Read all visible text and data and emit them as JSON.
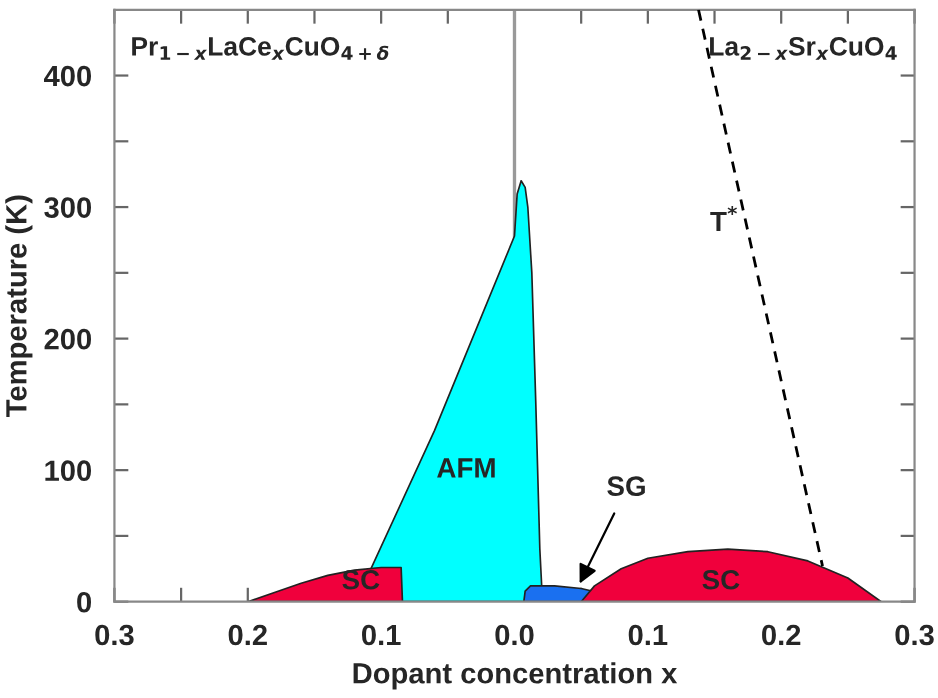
{
  "chart_data": {
    "type": "area",
    "xlabel": "Dopant concentration x",
    "ylabel": "Temperature (K)",
    "xlim": [
      -0.3,
      0.3
    ],
    "ylim": [
      0,
      450
    ],
    "xticks": [
      {
        "value": -0.3,
        "label": "0.3"
      },
      {
        "value": -0.25,
        "label": null
      },
      {
        "value": -0.2,
        "label": "0.2"
      },
      {
        "value": -0.15,
        "label": null
      },
      {
        "value": -0.1,
        "label": "0.1"
      },
      {
        "value": -0.05,
        "label": null
      },
      {
        "value": 0,
        "label": "0.0"
      },
      {
        "value": 0.05,
        "label": null
      },
      {
        "value": 0.1,
        "label": "0.1"
      },
      {
        "value": 0.15,
        "label": null
      },
      {
        "value": 0.2,
        "label": "0.2"
      },
      {
        "value": 0.25,
        "label": null
      },
      {
        "value": 0.3,
        "label": "0.3"
      }
    ],
    "yticks": [
      0,
      {
        "value": 50,
        "label": null
      },
      100,
      {
        "value": 150,
        "label": null
      },
      200,
      {
        "value": 250,
        "label": null
      },
      300,
      {
        "value": 350,
        "label": null
      },
      400
    ],
    "grid": false,
    "legend": false,
    "series": [
      {
        "color": "#00ffff",
        "x": [
          -0.119,
          -0.06,
          0,
          0.002,
          0.005,
          0.008,
          0.01,
          0.013,
          0.016,
          0.019,
          0.021
        ],
        "values": [
          0,
          130,
          278,
          310,
          320,
          315,
          300,
          250,
          150,
          40,
          0
        ]
      },
      {
        "color": "#f0003c",
        "x": [
          -0.2,
          -0.18,
          -0.16,
          -0.14,
          -0.12,
          -0.1,
          -0.085,
          -0.084
        ],
        "values": [
          0,
          7,
          14,
          20,
          24,
          26,
          26,
          0
        ]
      },
      {
        "color": "#1a70f0",
        "x": [
          0.007,
          0.008,
          0.012,
          0.03,
          0.05,
          0.092
        ],
        "values": [
          0,
          8,
          12,
          12,
          10,
          0
        ]
      },
      {
        "color": "#f0003c",
        "x": [
          0.05,
          0.06,
          0.08,
          0.1,
          0.13,
          0.16,
          0.19,
          0.22,
          0.25,
          0.275
        ],
        "values": [
          0,
          12,
          25,
          33,
          38,
          40,
          38,
          31,
          18,
          0
        ]
      },
      {
        "type": "line",
        "color": "#000000",
        "line_style": "dashed",
        "x": [
          0.138,
          0.231
        ],
        "values": [
          450,
          27
        ]
      }
    ],
    "ref_lines": [
      {
        "axis": "x",
        "value": 0,
        "color": "#999999"
      }
    ],
    "annotations": [
      "Pr$_{1−x}$LaCe$_{x}$CuO$_{4+δ}$",
      "La$_{2−x}$Sr$_{x}$CuO$_{4}$",
      "AFM",
      "SC",
      "SC",
      "T$^{*}$",
      {
        "text": "SG",
        "x": 0.047,
        "y": 10
      }
    ]
  }
}
